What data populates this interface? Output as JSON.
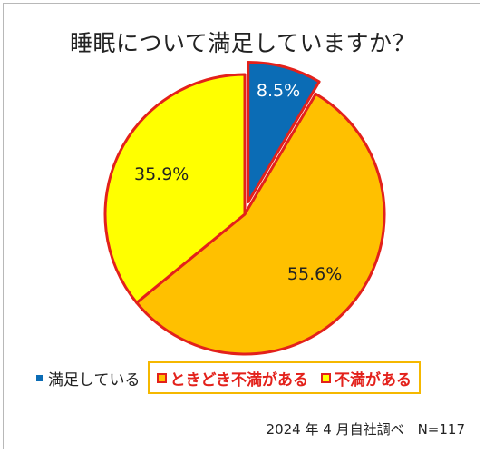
{
  "chart_data": {
    "type": "pie",
    "title": "睡眠について満足していますか？",
    "slices": [
      {
        "label": "満足している",
        "value": 8.5,
        "value_label": "8.5%",
        "color": "#0b6cb5",
        "text_color": "#ffffff",
        "exploded": true
      },
      {
        "label": "ときどき不満がある",
        "value": 55.6,
        "value_label": "55.6%",
        "color": "#ffc000",
        "text_color": "#222222",
        "exploded": false
      },
      {
        "label": "不満がある",
        "value": 35.9,
        "value_label": "35.9%",
        "color": "#ffff00",
        "text_color": "#222222",
        "exploded": false
      }
    ],
    "slice_border_color": "#e3211b",
    "start_angle": "12 o'clock, clockwise",
    "legend_position": "bottom",
    "source_note": "2024 年 4 月自社調べ　N=117"
  },
  "colors": {
    "legend_box_border": "#f5b800",
    "legend_highlight_text": "#e3211b"
  }
}
